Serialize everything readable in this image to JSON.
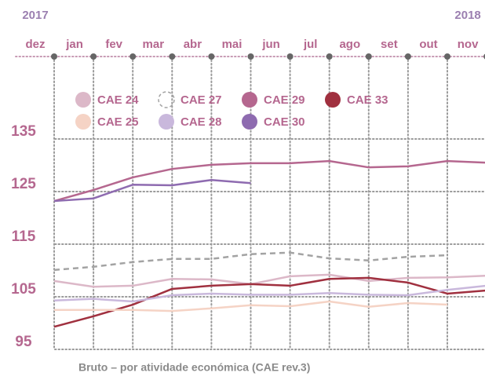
{
  "chart_data": {
    "type": "line",
    "year_labels": [
      "2017",
      "2018"
    ],
    "categories": [
      "dez",
      "jan",
      "fev",
      "mar",
      "abr",
      "mai",
      "jun",
      "jul",
      "ago",
      "set",
      "out",
      "nov"
    ],
    "ylim": [
      95,
      135
    ],
    "yticks": [
      95,
      105,
      115,
      125,
      135
    ],
    "grid": true,
    "series": [
      {
        "name": "CAE 24",
        "color": "#dcb8c8",
        "values": [
          108.0,
          106.9,
          107.1,
          108.4,
          108.3,
          107.4,
          108.9,
          109.2,
          108.0,
          108.6,
          108.7,
          109.0
        ]
      },
      {
        "name": "CAE 27",
        "color": "#a3a3a3",
        "dashed": true,
        "values": [
          110.1,
          110.7,
          111.6,
          112.2,
          112.2,
          113.1,
          113.4,
          112.3,
          111.9,
          112.6,
          112.9,
          null
        ]
      },
      {
        "name": "CAE 29",
        "color": "#b5678f",
        "values": [
          123.2,
          125.3,
          127.7,
          129.3,
          130.1,
          130.4,
          130.4,
          130.8,
          129.6,
          129.8,
          130.8,
          130.5
        ]
      },
      {
        "name": "CAE 33",
        "color": "#a0303f",
        "values": [
          99.3,
          101.3,
          103.5,
          106.5,
          107.1,
          107.4,
          107.1,
          108.4,
          108.6,
          107.7,
          105.6,
          106.2
        ]
      },
      {
        "name": "CAE 25",
        "color": "#f5d3c5",
        "values": [
          102.5,
          102.5,
          102.5,
          102.3,
          102.8,
          103.4,
          103.2,
          104.1,
          103.1,
          103.8,
          103.5,
          null
        ]
      },
      {
        "name": "CAE 28",
        "color": "#c9b8dc",
        "values": [
          104.3,
          104.6,
          104.1,
          105.3,
          105.6,
          105.4,
          105.4,
          105.7,
          105.4,
          105.3,
          106.3,
          107.1
        ]
      },
      {
        "name": "CAE 30",
        "color": "#8e6bb0",
        "values": [
          123.2,
          123.7,
          126.3,
          126.2,
          127.2,
          126.6,
          null,
          null,
          null,
          null,
          null,
          null
        ]
      }
    ],
    "footnote": "Bruto – por atividade económica (CAE rev.3)"
  }
}
